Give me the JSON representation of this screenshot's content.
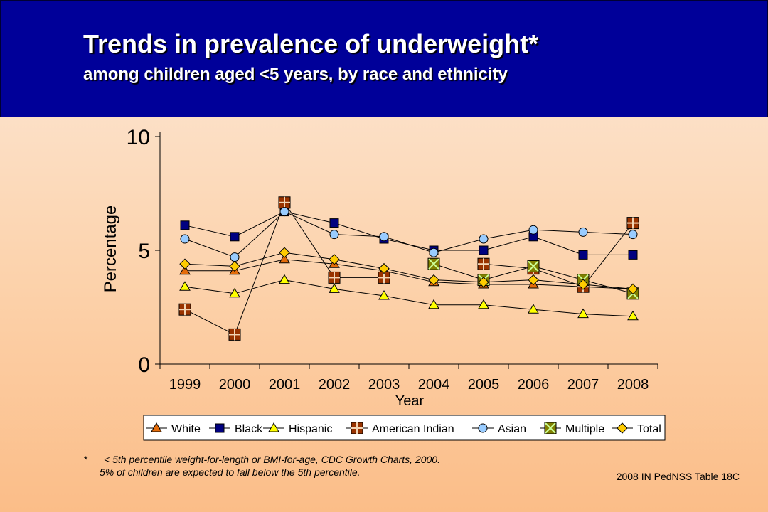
{
  "header": {
    "title": "Trends in prevalence of underweight*",
    "subtitle": "among children aged <5 years, by race and ethnicity"
  },
  "footnote": {
    "marker": "*",
    "line1": "< 5th percentile weight-for-length or BMI-for-age, CDC Growth Charts, 2000.",
    "line2": "5% of children are expected to fall below the 5th percentile."
  },
  "source": "2008 IN PedNSS Table 18C",
  "chart_data": {
    "type": "line",
    "title": "",
    "xlabel": "Year",
    "ylabel": "Percentage",
    "ylim": [
      0,
      10
    ],
    "yticks": [
      0,
      5,
      10
    ],
    "grid": false,
    "legend_position": "bottom",
    "x": [
      "1999",
      "2000",
      "2001",
      "2002",
      "2003",
      "2004",
      "2005",
      "2006",
      "2007",
      "2008"
    ],
    "series": [
      {
        "name": "White",
        "marker": "triangle",
        "color": "#e46c0a",
        "values": [
          4.1,
          4.1,
          4.6,
          4.4,
          4.1,
          3.6,
          3.5,
          3.5,
          3.4,
          3.3
        ]
      },
      {
        "name": "Black",
        "marker": "square",
        "color": "#000080",
        "values": [
          6.1,
          5.6,
          6.7,
          6.2,
          5.5,
          5.0,
          5.0,
          5.6,
          4.8,
          4.8
        ]
      },
      {
        "name": "Hispanic",
        "marker": "triangle",
        "color": "#ffff00",
        "values": [
          3.4,
          3.1,
          3.7,
          3.3,
          3.0,
          2.6,
          2.6,
          2.4,
          2.2,
          2.1
        ]
      },
      {
        "name": "American Indian",
        "marker": "crossbox",
        "color": "#993300",
        "values": [
          2.4,
          1.3,
          7.1,
          3.8,
          3.8,
          null,
          4.4,
          4.2,
          3.4,
          6.2
        ]
      },
      {
        "name": "Asian",
        "marker": "circle",
        "color": "#99ccff",
        "values": [
          5.5,
          4.7,
          6.7,
          5.7,
          5.6,
          4.9,
          5.5,
          5.9,
          5.8,
          5.7
        ]
      },
      {
        "name": "Multiple",
        "marker": "xbox",
        "color": "#808000",
        "values": [
          null,
          null,
          null,
          null,
          null,
          4.4,
          3.7,
          4.3,
          3.7,
          3.1
        ]
      },
      {
        "name": "Total",
        "marker": "diamond",
        "color": "#ffcc00",
        "values": [
          4.4,
          4.3,
          4.9,
          4.6,
          4.2,
          3.7,
          3.6,
          3.7,
          3.5,
          3.3
        ]
      }
    ]
  }
}
